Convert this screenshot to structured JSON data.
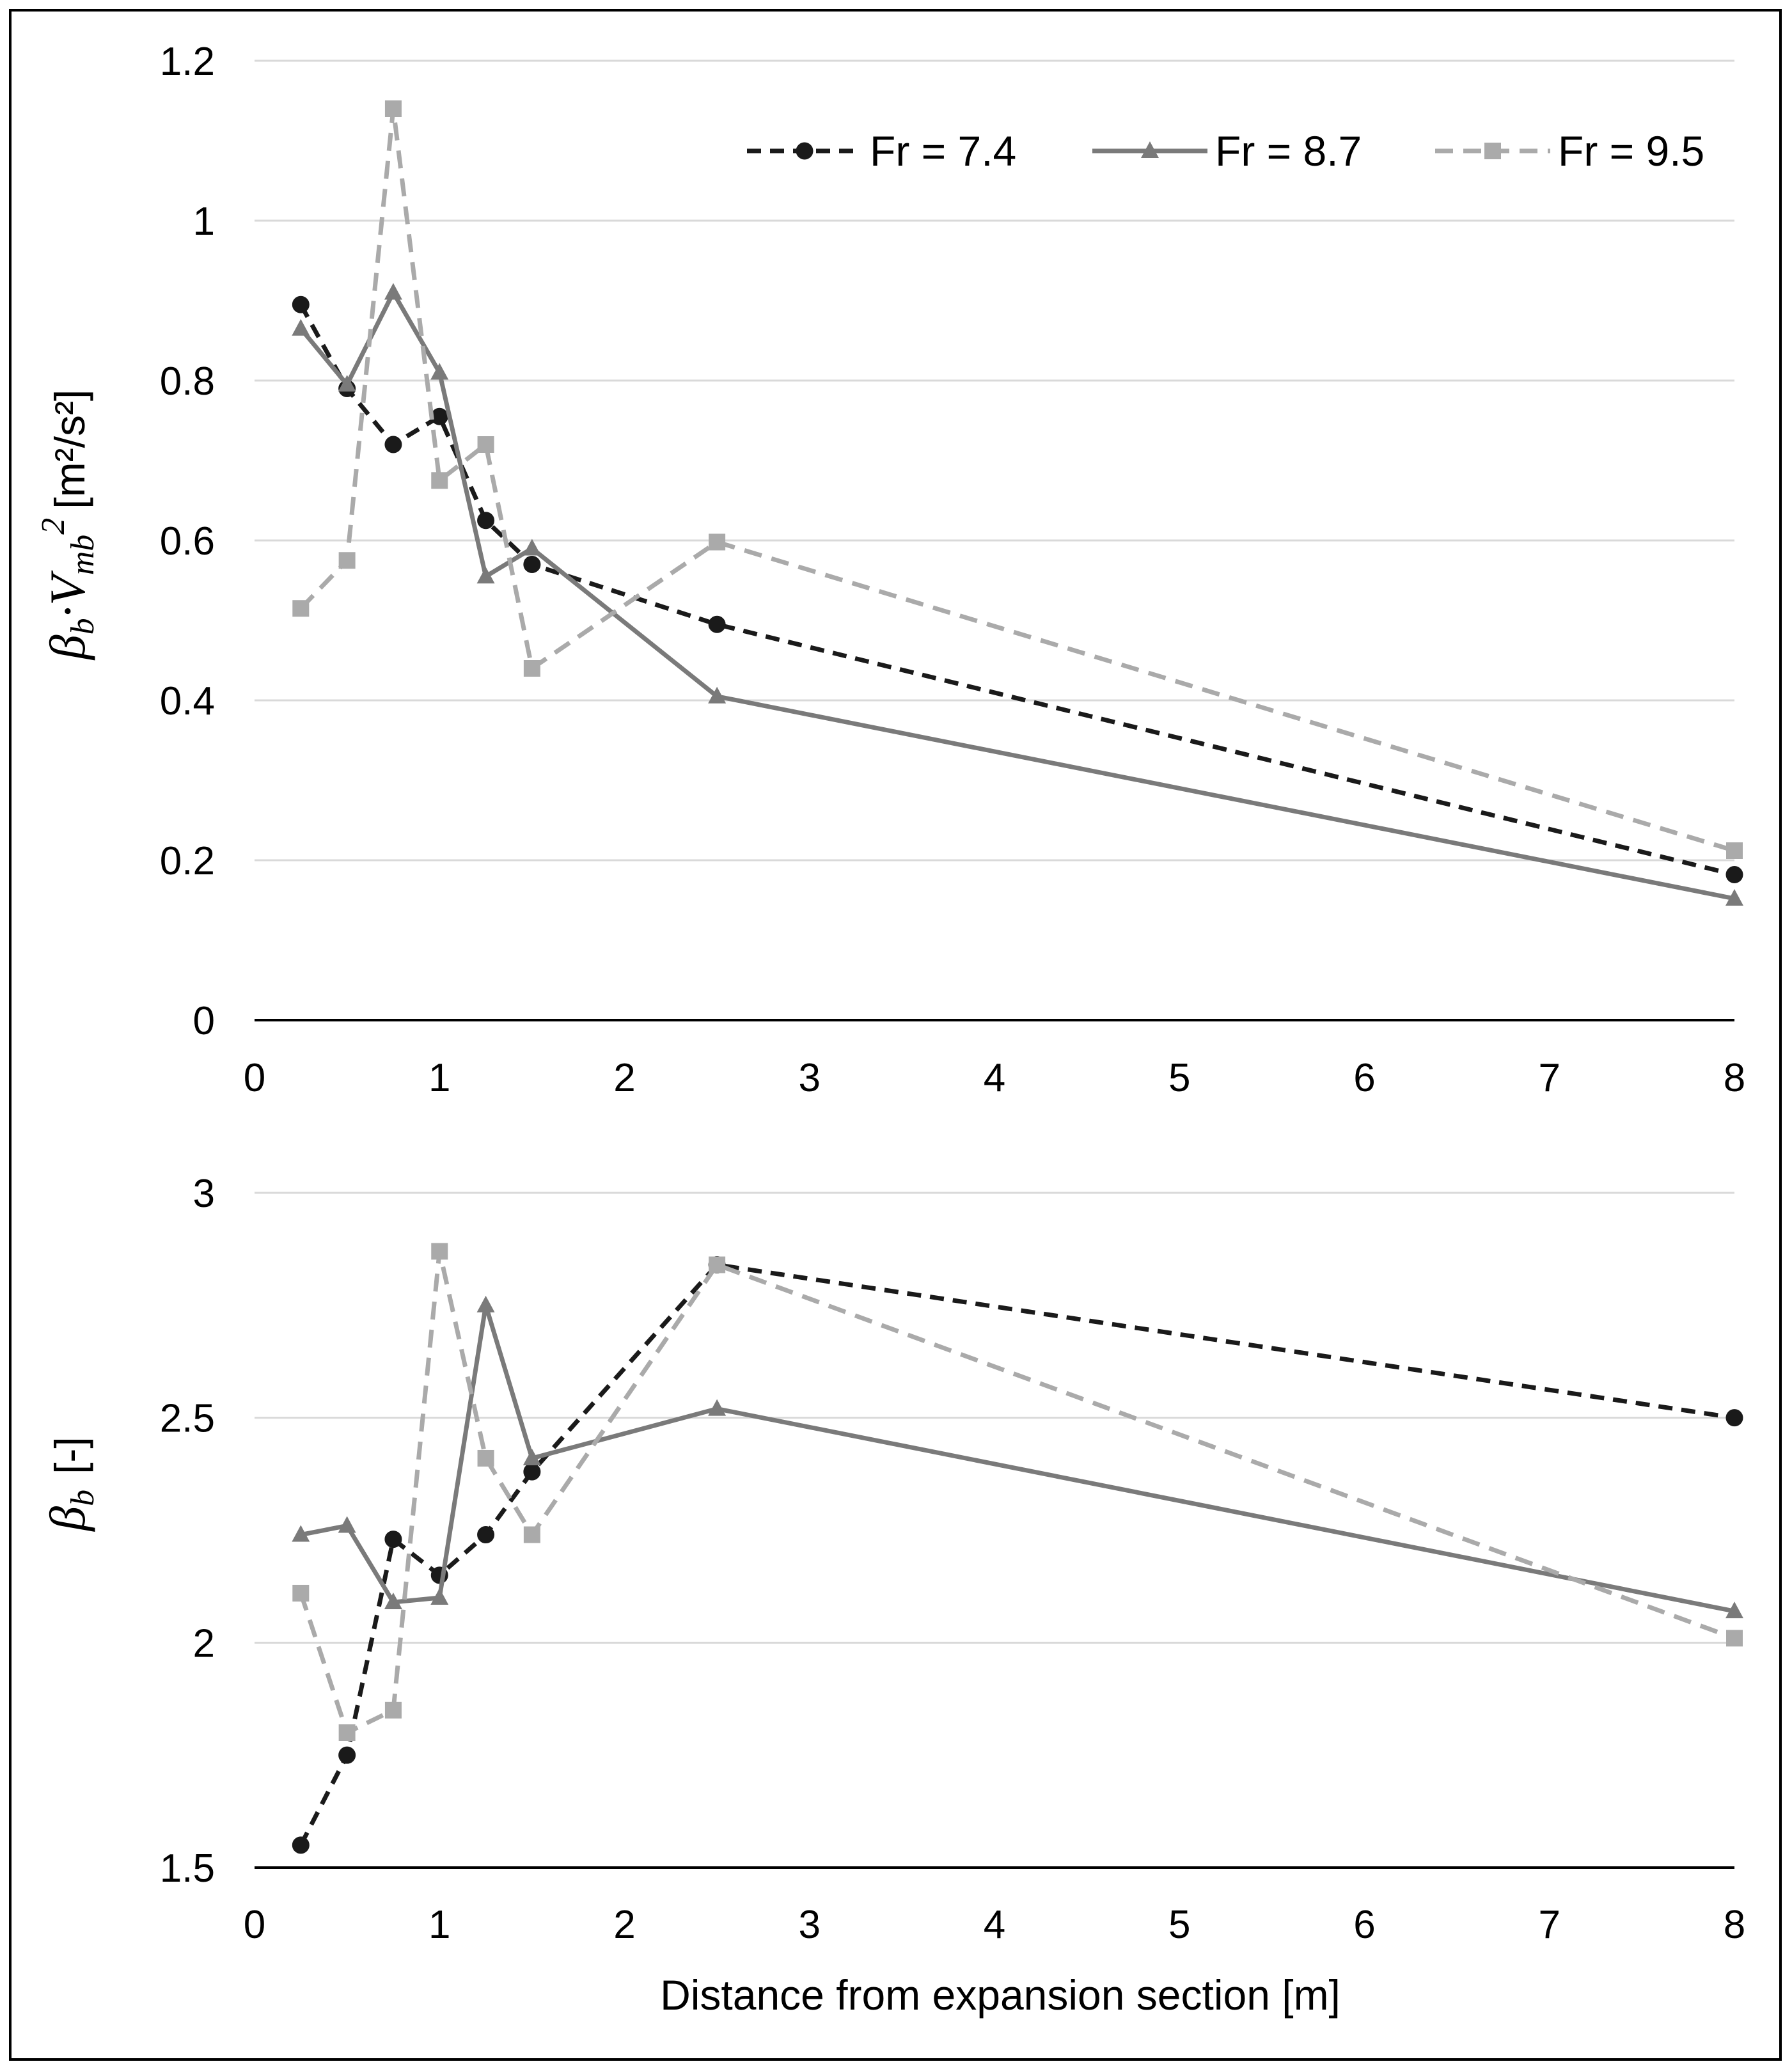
{
  "colors": {
    "fr74": "#1a1a1a",
    "fr87": "#7a7a7a",
    "fr95": "#aaaaaa",
    "grid": "#d9d9d9",
    "axis": "#000000"
  },
  "chart_data": [
    {
      "type": "line",
      "id": "top",
      "ylabel_main": "β",
      "ylabel_sub": "b",
      "ylabel_mid": "·V",
      "ylabel_sub2": "mb",
      "ylabel_sup": "2",
      "ylabel_units": "[m²/s²]",
      "xlabel": "",
      "xlim": [
        0,
        8
      ],
      "ylim": [
        0,
        1.2
      ],
      "x_tick_labels": [
        "0",
        "1",
        "2",
        "3",
        "4",
        "5",
        "6",
        "7",
        "8"
      ],
      "y_tick_labels": [
        "0",
        "0.2",
        "0.4",
        "0.6",
        "0.8",
        "1",
        "1.2"
      ],
      "y_ticks": [
        0,
        0.2,
        0.4,
        0.6,
        0.8,
        1.0,
        1.2
      ],
      "legend": [
        "Fr = 7.4",
        "Fr = 8.7",
        "Fr = 9.5"
      ],
      "legend_position": "top-right",
      "series": [
        {
          "name": "Fr = 7.4",
          "x": [
            0.25,
            0.5,
            0.75,
            1.0,
            1.25,
            1.5,
            2.5,
            8.0
          ],
          "values": [
            0.895,
            0.79,
            0.72,
            0.755,
            0.625,
            0.57,
            0.495,
            0.182
          ]
        },
        {
          "name": "Fr = 8.7",
          "x": [
            0.25,
            0.5,
            0.75,
            1.0,
            1.25,
            1.5,
            2.5,
            8.0
          ],
          "values": [
            0.865,
            0.795,
            0.91,
            0.81,
            0.555,
            0.59,
            0.405,
            0.152
          ]
        },
        {
          "name": "Fr = 9.5",
          "x": [
            0.25,
            0.5,
            0.75,
            1.0,
            1.25,
            1.5,
            2.5,
            8.0
          ],
          "values": [
            0.515,
            0.575,
            1.14,
            0.675,
            0.72,
            0.44,
            0.598,
            0.212
          ]
        }
      ]
    },
    {
      "type": "line",
      "id": "bottom",
      "ylabel_main": "β",
      "ylabel_sub": "b",
      "ylabel_units": "[-]",
      "xlabel": "Distance from expansion section [m]",
      "xlim": [
        0,
        8
      ],
      "ylim": [
        1.5,
        3.0
      ],
      "x_tick_labels": [
        "0",
        "1",
        "2",
        "3",
        "4",
        "5",
        "6",
        "7",
        "8"
      ],
      "y_tick_labels": [
        "1.5",
        "2",
        "2.5",
        "3"
      ],
      "y_ticks": [
        1.5,
        2.0,
        2.5,
        3.0
      ],
      "series": [
        {
          "name": "Fr = 7.4",
          "x": [
            0.25,
            0.5,
            0.75,
            1.0,
            1.25,
            1.5,
            2.5,
            8.0
          ],
          "values": [
            1.55,
            1.75,
            2.23,
            2.15,
            2.24,
            2.38,
            2.84,
            2.5
          ]
        },
        {
          "name": "Fr = 8.7",
          "x": [
            0.25,
            0.5,
            0.75,
            1.0,
            1.25,
            1.5,
            2.5,
            8.0
          ],
          "values": [
            2.24,
            2.26,
            2.09,
            2.1,
            2.75,
            2.41,
            2.52,
            2.07
          ]
        },
        {
          "name": "Fr = 9.5",
          "x": [
            0.25,
            0.5,
            0.75,
            1.0,
            1.25,
            1.5,
            2.5,
            8.0
          ],
          "values": [
            2.11,
            1.8,
            1.85,
            2.87,
            2.41,
            2.24,
            2.84,
            2.01
          ]
        }
      ]
    }
  ]
}
